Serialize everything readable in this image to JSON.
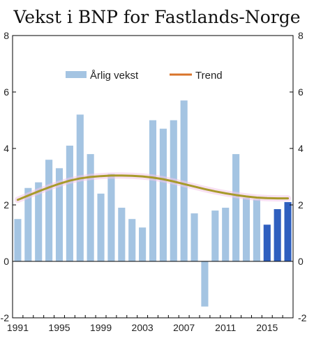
{
  "chart_data": {
    "type": "bar",
    "title": "Vekst i BNP for Fastlands-Norge",
    "years": [
      1991,
      1992,
      1993,
      1994,
      1995,
      1996,
      1997,
      1998,
      1999,
      2000,
      2001,
      2002,
      2003,
      2004,
      2005,
      2006,
      2007,
      2008,
      2009,
      2010,
      2011,
      2012,
      2013,
      2014,
      2015,
      2016,
      2017
    ],
    "x_tick_labels": [
      "1991",
      "1995",
      "1999",
      "2003",
      "2007",
      "2011",
      "2015"
    ],
    "y_tick_labels": [
      "-2",
      "0",
      "2",
      "4",
      "6",
      "8"
    ],
    "ylim": [
      -2,
      8
    ],
    "series": [
      {
        "name": "Årlig vekst",
        "type": "bar",
        "color": "#a4c4e2",
        "values": [
          1.5,
          2.6,
          2.8,
          3.6,
          3.3,
          4.1,
          5.2,
          3.8,
          2.4,
          3.1,
          1.9,
          1.5,
          1.2,
          5.0,
          4.7,
          5.0,
          5.7,
          1.7,
          -1.6,
          1.8,
          1.9,
          3.8,
          2.25,
          2.2,
          1.3,
          1.85,
          2.1
        ],
        "highlight_from_index": 24,
        "highlight_color": "#2f5fbf"
      },
      {
        "name": "Trend",
        "type": "line",
        "color": "#d9732a",
        "values": [
          2.18,
          2.33,
          2.48,
          2.62,
          2.75,
          2.86,
          2.94,
          2.99,
          3.02,
          3.04,
          3.04,
          3.03,
          3.01,
          2.97,
          2.91,
          2.83,
          2.74,
          2.65,
          2.56,
          2.48,
          2.41,
          2.35,
          2.3,
          2.26,
          2.24,
          2.23,
          2.23
        ]
      }
    ],
    "grid": false,
    "legend_position": "top"
  }
}
